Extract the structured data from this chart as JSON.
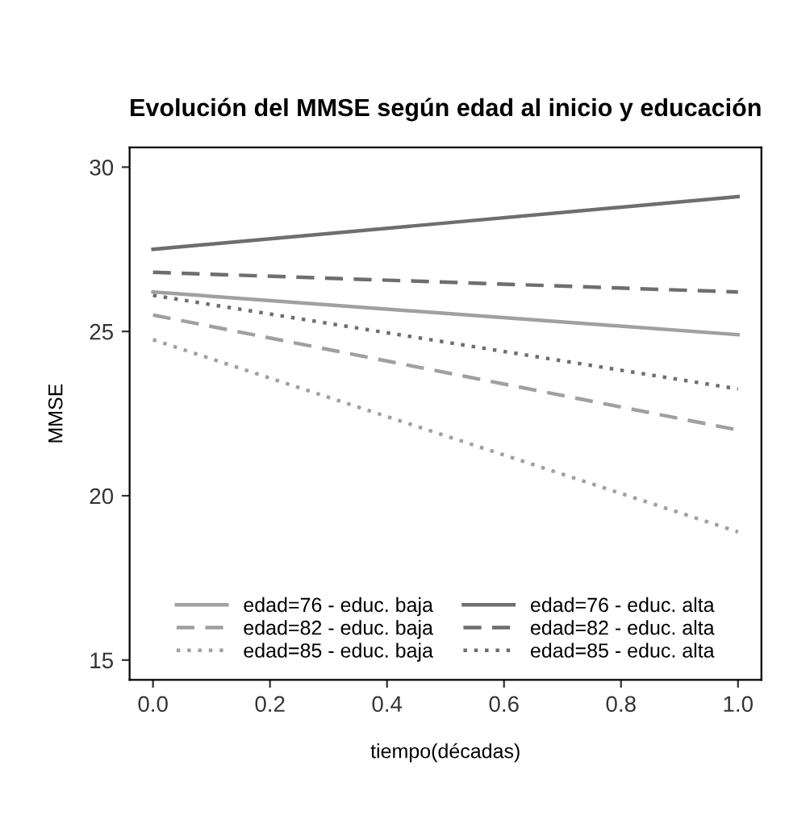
{
  "chart_data": {
    "type": "line",
    "title": "Evolución del MMSE según edad al inicio y educación",
    "xlabel": "tiempo(décadas)",
    "ylabel": "MMSE",
    "x": [
      0,
      1
    ],
    "series": [
      {
        "name": "edad=76 - educ. baja",
        "color": "#a0a0a0",
        "values": [
          26.2,
          24.9
        ],
        "line_style": "solid"
      },
      {
        "name": "edad=82 - educ. baja",
        "color": "#a0a0a0",
        "values": [
          25.5,
          22.0
        ],
        "line_style": "dashed"
      },
      {
        "name": "edad=85 - educ. baja",
        "color": "#a0a0a0",
        "values": [
          24.75,
          18.9
        ],
        "line_style": "dotted"
      },
      {
        "name": "edad=76 - educ. alta",
        "color": "#6e6e6e",
        "values": [
          27.5,
          29.1
        ],
        "line_style": "solid"
      },
      {
        "name": "edad=82 - educ. alta",
        "color": "#6e6e6e",
        "values": [
          26.8,
          26.2
        ],
        "line_style": "dashed"
      },
      {
        "name": "edad=85 - educ. alta",
        "color": "#6e6e6e",
        "values": [
          26.1,
          23.25
        ],
        "line_style": "dotted"
      }
    ],
    "xlim": [
      -0.04,
      1.04
    ],
    "ylim": [
      14.4,
      30.6
    ],
    "xticks": [
      {
        "value": 0,
        "label": "0.0"
      },
      0.2,
      0.4,
      0.6,
      0.8,
      {
        "value": 1,
        "label": "1.0"
      }
    ],
    "yticks": [
      15,
      20,
      25,
      30
    ],
    "grid": false,
    "legend": "bottom",
    "marker": "none"
  }
}
